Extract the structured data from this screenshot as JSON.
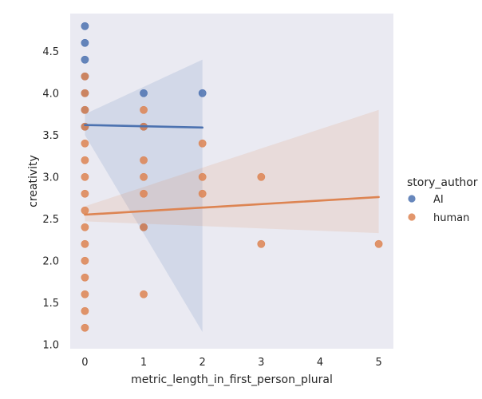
{
  "chart_data": {
    "type": "scatter",
    "title": "",
    "xlabel": "metric_length_in_first_person_plural",
    "ylabel": "creativity",
    "xlim": [
      -0.25,
      5.25
    ],
    "ylim": [
      0.95,
      4.95
    ],
    "xticks": [
      "0",
      "1",
      "2",
      "3",
      "4",
      "5"
    ],
    "yticks": [
      "1.0",
      "1.5",
      "2.0",
      "2.5",
      "3.0",
      "3.5",
      "4.0",
      "4.5"
    ],
    "grid": false,
    "background": "#eaeaf2",
    "legend": {
      "title": "story_author",
      "position": "right"
    },
    "series": [
      {
        "name": "AI",
        "color": "#4c72b0",
        "points": [
          [
            0,
            4.8
          ],
          [
            0,
            4.6
          ],
          [
            0,
            4.4
          ],
          [
            0,
            4.2
          ],
          [
            0,
            4.0
          ],
          [
            0,
            3.8
          ],
          [
            0,
            3.6
          ],
          [
            1,
            4.0
          ],
          [
            1,
            3.6
          ],
          [
            1,
            2.4
          ],
          [
            2,
            4.0
          ]
        ],
        "regression": {
          "x_range": [
            0,
            2
          ],
          "y_start": 3.62,
          "y_end": 3.59
        },
        "ci_band": {
          "x": [
            0,
            2
          ],
          "upper": [
            3.75,
            4.4
          ],
          "lower": [
            3.5,
            1.15
          ]
        }
      },
      {
        "name": "human",
        "color": "#dd8452",
        "points": [
          [
            0,
            4.2
          ],
          [
            0,
            4.0
          ],
          [
            0,
            3.8
          ],
          [
            0,
            3.6
          ],
          [
            0,
            3.4
          ],
          [
            0,
            3.2
          ],
          [
            0,
            3.0
          ],
          [
            0,
            2.8
          ],
          [
            0,
            2.6
          ],
          [
            0,
            2.4
          ],
          [
            0,
            2.2
          ],
          [
            0,
            2.0
          ],
          [
            0,
            1.8
          ],
          [
            0,
            1.6
          ],
          [
            0,
            1.4
          ],
          [
            0,
            1.2
          ],
          [
            1,
            3.8
          ],
          [
            1,
            3.6
          ],
          [
            1,
            3.2
          ],
          [
            1,
            3.0
          ],
          [
            1,
            2.8
          ],
          [
            1,
            2.4
          ],
          [
            1,
            1.6
          ],
          [
            2,
            3.4
          ],
          [
            2,
            3.0
          ],
          [
            2,
            2.8
          ],
          [
            3,
            3.0
          ],
          [
            3,
            2.2
          ],
          [
            5,
            2.2
          ]
        ],
        "regression": {
          "x_range": [
            0,
            5
          ],
          "y_start": 2.55,
          "y_end": 2.76
        },
        "ci_band": {
          "x": [
            0,
            5
          ],
          "upper": [
            2.65,
            3.8
          ],
          "lower": [
            2.47,
            2.33
          ]
        }
      }
    ]
  }
}
